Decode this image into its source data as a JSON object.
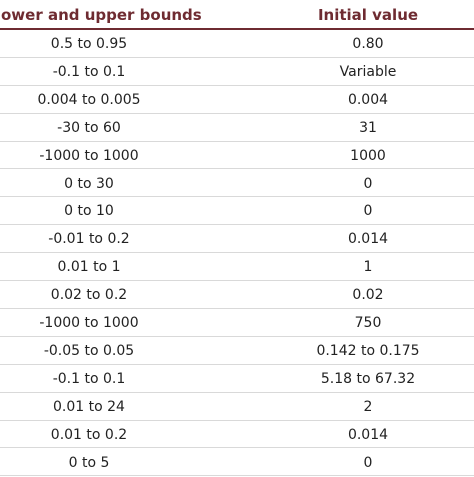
{
  "table": {
    "header": [
      "ower and upper bounds",
      "Initial value"
    ],
    "rows": [
      [
        "0.5 to 0.95",
        "0.80"
      ],
      [
        "-0.1 to 0.1",
        "Variable"
      ],
      [
        "0.004 to 0.005",
        "0.004"
      ],
      [
        "-30 to 60",
        "31"
      ],
      [
        "-1000 to 1000",
        "1000"
      ],
      [
        "0 to 30",
        "0"
      ],
      [
        "0 to 10",
        "0"
      ],
      [
        "-0.01 to 0.2",
        "0.014"
      ],
      [
        "0.01 to 1",
        "1"
      ],
      [
        "0.02 to 0.2",
        "0.02"
      ],
      [
        "-1000 to 1000",
        "750"
      ],
      [
        "-0.05 to 0.05",
        "0.142 to 0.175"
      ],
      [
        "-0.1 to 0.1",
        "5.18 to 67.32"
      ],
      [
        "0.01 to 24",
        "2"
      ],
      [
        "0.01 to 0.2",
        "0.014"
      ],
      [
        "0 to 5",
        "0"
      ]
    ]
  }
}
